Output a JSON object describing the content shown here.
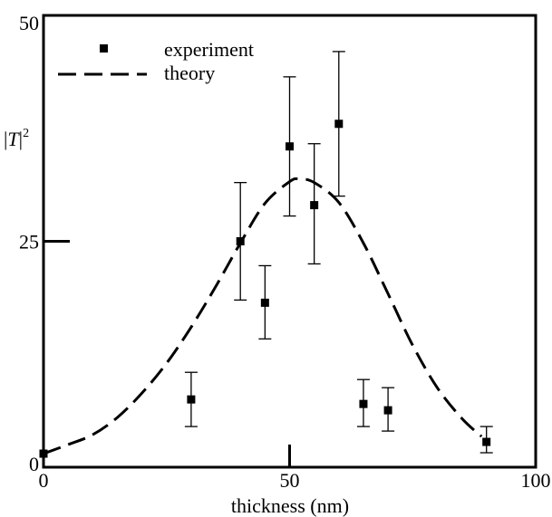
{
  "chart_data": {
    "type": "scatter",
    "xlabel": "thickness (nm)",
    "ylabel_main": "|T|",
    "ylabel_sup": "2",
    "xlim": [
      0,
      100
    ],
    "ylim": [
      0,
      50
    ],
    "x_ticks": [
      0,
      50,
      100
    ],
    "y_ticks": [
      0,
      25,
      50
    ],
    "x_tick_labels": [
      "0",
      "50",
      "100"
    ],
    "y_tick_labels": [
      "0",
      "25",
      "50"
    ],
    "grid": false,
    "legend_position": "top-left",
    "series": [
      {
        "name": "experiment",
        "kind": "points-with-error-bars",
        "points": [
          {
            "x": 0,
            "y": 1.5,
            "err_low": null,
            "err_high": null
          },
          {
            "x": 30,
            "y": 7.5,
            "err_low": 4.5,
            "err_high": 10.5
          },
          {
            "x": 40,
            "y": 25.0,
            "err_low": 18.5,
            "err_high": 31.5
          },
          {
            "x": 45,
            "y": 18.2,
            "err_low": 14.2,
            "err_high": 22.3
          },
          {
            "x": 50,
            "y": 35.5,
            "err_low": 27.8,
            "err_high": 43.2
          },
          {
            "x": 55,
            "y": 29.0,
            "err_low": 22.5,
            "err_high": 35.8
          },
          {
            "x": 60,
            "y": 38.0,
            "err_low": 30.0,
            "err_high": 46.0
          },
          {
            "x": 65,
            "y": 7.0,
            "err_low": 4.5,
            "err_high": 9.7
          },
          {
            "x": 70,
            "y": 6.3,
            "err_low": 4.0,
            "err_high": 8.8
          },
          {
            "x": 90,
            "y": 2.8,
            "err_low": 1.6,
            "err_high": 4.5
          }
        ]
      },
      {
        "name": "theory",
        "kind": "dashed-line",
        "x": [
          0,
          5,
          10,
          15,
          20,
          25,
          30,
          35,
          40,
          45,
          50,
          52,
          55,
          60,
          65,
          70,
          75,
          80,
          85,
          89
        ],
        "y": [
          1.5,
          2.5,
          3.6,
          5.5,
          8.2,
          11.5,
          15.5,
          20.0,
          24.8,
          29.2,
          31.6,
          31.9,
          31.5,
          29.3,
          24.8,
          19.2,
          13.5,
          8.8,
          5.4,
          3.4
        ]
      }
    ]
  }
}
